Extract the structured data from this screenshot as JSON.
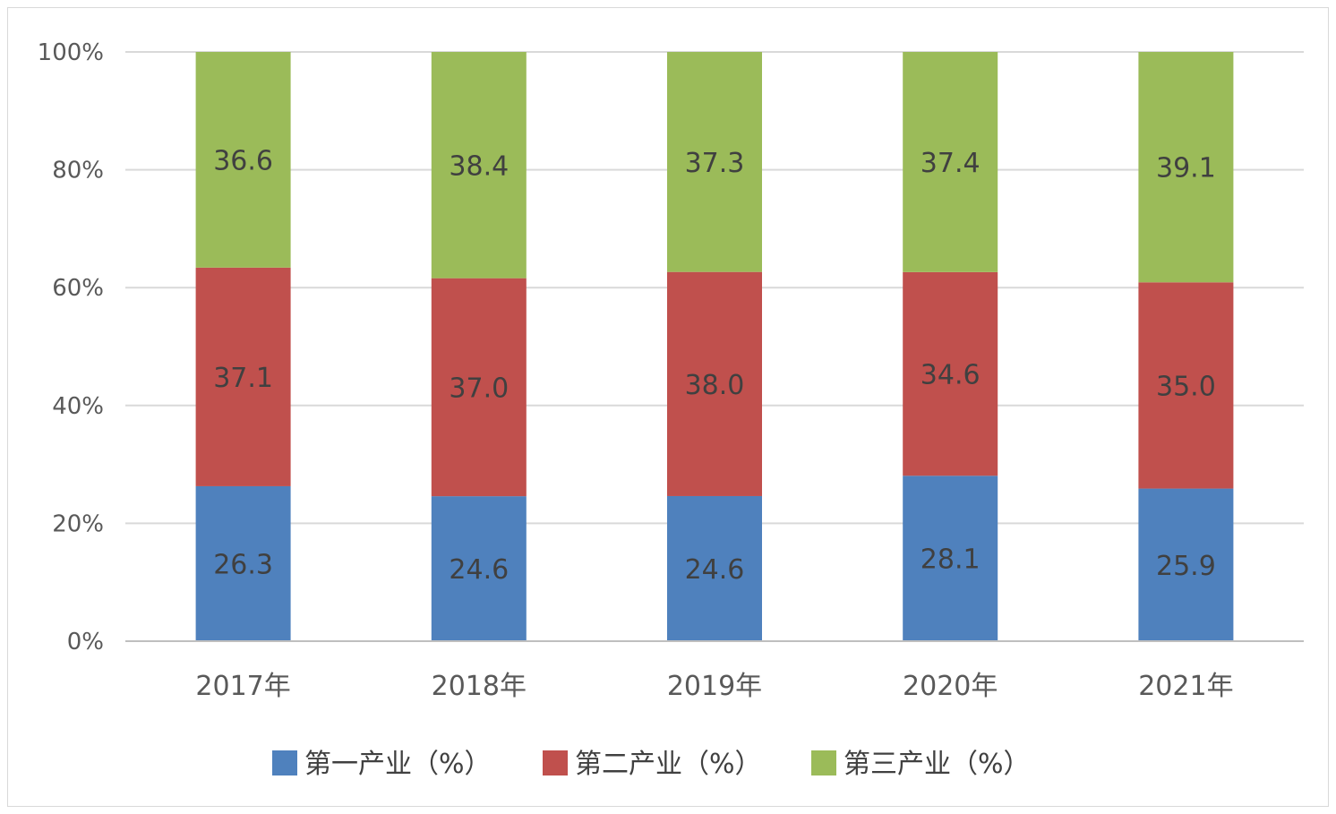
{
  "chart_data": {
    "type": "bar",
    "stacked": true,
    "percent_stacked": true,
    "categories": [
      "2017年",
      "2018年",
      "2019年",
      "2020年",
      "2021年"
    ],
    "series": [
      {
        "name": "第一产业（%）",
        "values": [
          26.3,
          24.6,
          24.6,
          28.1,
          25.9
        ],
        "color": "#4f81bd"
      },
      {
        "name": "第二产业（%）",
        "values": [
          37.1,
          37.0,
          38.0,
          34.6,
          35.0
        ],
        "color": "#c0504d"
      },
      {
        "name": "第三产业（%）",
        "values": [
          36.6,
          38.4,
          37.3,
          37.4,
          39.1
        ],
        "color": "#9bbb59"
      }
    ],
    "data_labels": [
      [
        "26.3",
        "24.6",
        "24.6",
        "28.1",
        "25.9"
      ],
      [
        "37.1",
        "37.0",
        "38.0",
        "34.6",
        "35.0"
      ],
      [
        "36.6",
        "38.4",
        "37.3",
        "37.4",
        "39.1"
      ]
    ],
    "y_ticks": [
      "0%",
      "20%",
      "40%",
      "60%",
      "80%",
      "100%"
    ],
    "ylim": [
      0,
      100
    ],
    "grid": true,
    "legend_position": "bottom",
    "title": "",
    "xlabel": "",
    "ylabel": ""
  }
}
